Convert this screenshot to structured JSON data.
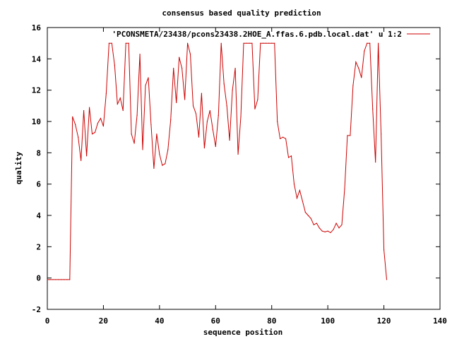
{
  "chart_data": {
    "type": "line",
    "title": "consensus based quality prediction",
    "xlabel": "sequence position",
    "ylabel": "quality",
    "xlim": [
      0,
      140
    ],
    "ylim": [
      -2,
      16
    ],
    "xticks": [
      0,
      20,
      40,
      60,
      80,
      100,
      120,
      140
    ],
    "yticks": [
      -2,
      0,
      2,
      4,
      6,
      8,
      10,
      12,
      14,
      16
    ],
    "xtick_labels": [
      "0",
      "20",
      "40",
      "60",
      "80",
      "100",
      "120",
      "140"
    ],
    "ytick_labels": [
      "-2",
      "0",
      "2",
      "4",
      "6",
      "8",
      "10",
      "12",
      "14",
      "16"
    ],
    "grid": false,
    "legend_position": "top-right",
    "line_color": "#cc0000",
    "series": [
      {
        "name": "'PCONSMETA/23438/pcons23438.2HOE_A.ffas.6.pdb.local.dat' u 1:2",
        "x": [
          0,
          1,
          2,
          3,
          4,
          5,
          6,
          7,
          8,
          9,
          10,
          11,
          12,
          13,
          14,
          15,
          16,
          17,
          18,
          19,
          20,
          21,
          22,
          23,
          24,
          25,
          26,
          27,
          28,
          29,
          30,
          31,
          32,
          33,
          34,
          35,
          36,
          37,
          38,
          39,
          40,
          41,
          42,
          43,
          44,
          45,
          46,
          47,
          48,
          49,
          50,
          51,
          52,
          53,
          54,
          55,
          56,
          57,
          58,
          59,
          60,
          61,
          62,
          63,
          64,
          65,
          66,
          67,
          68,
          69,
          70,
          71,
          72,
          73,
          74,
          75,
          76,
          77,
          78,
          79,
          80,
          81,
          82,
          83,
          84,
          85,
          86,
          87,
          88,
          89,
          90,
          91,
          92,
          93,
          94,
          95,
          96,
          97,
          98,
          99,
          100,
          101,
          102,
          103,
          104,
          105,
          106,
          107,
          108,
          109,
          110,
          111,
          112,
          113,
          114,
          115,
          116,
          117,
          118,
          119,
          120,
          121
        ],
        "y": [
          -0.1,
          -0.1,
          -0.1,
          -0.1,
          -0.1,
          -0.1,
          -0.1,
          -0.1,
          -0.1,
          10.3,
          9.8,
          9.0,
          7.5,
          10.7,
          7.8,
          10.9,
          9.2,
          9.3,
          9.9,
          10.2,
          9.7,
          11.8,
          15.0,
          15.0,
          13.6,
          11.1,
          11.5,
          10.7,
          15.0,
          15.0,
          9.2,
          8.6,
          10.4,
          14.3,
          8.2,
          12.3,
          12.8,
          9.8,
          7.0,
          9.2,
          7.9,
          7.2,
          7.3,
          8.2,
          10.1,
          13.4,
          11.2,
          14.1,
          13.4,
          11.4,
          15.0,
          14.3,
          11.0,
          10.5,
          9.0,
          11.8,
          8.3,
          10.0,
          10.7,
          9.5,
          8.4,
          10.4,
          15.0,
          12.4,
          11.0,
          8.8,
          12.0,
          13.4,
          7.9,
          10.3,
          15.0,
          15.0,
          15.0,
          15.0,
          10.8,
          11.4,
          15.0,
          15.0,
          15.0,
          15.0,
          15.0,
          15.0,
          10.0,
          8.9,
          9.0,
          8.9,
          7.7,
          7.8,
          6.0,
          5.1,
          5.6,
          4.9,
          4.2,
          4.0,
          3.8,
          3.4,
          3.5,
          3.2,
          3.0,
          2.95,
          3.0,
          2.9,
          3.1,
          3.5,
          3.2,
          3.4,
          5.7,
          9.1,
          9.1,
          12.3,
          13.8,
          13.4,
          12.8,
          14.5,
          15.0,
          15.0,
          10.8,
          7.4,
          15.0,
          9.2,
          1.8,
          -0.1
        ]
      }
    ]
  }
}
